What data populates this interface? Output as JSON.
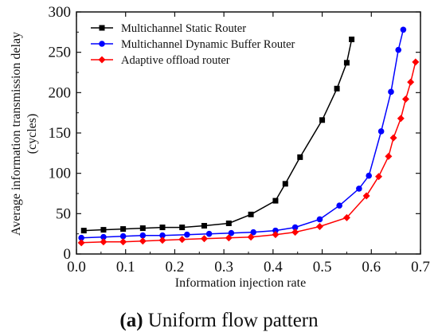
{
  "chart_data": {
    "type": "line",
    "xlabel": "Information injection rate",
    "ylabel_lines": [
      "Average information transmission delay",
      "(cycles)"
    ],
    "xlim": [
      0.0,
      0.7
    ],
    "ylim": [
      0,
      300
    ],
    "xticks": [
      "0.0",
      "0.1",
      "0.2",
      "0.3",
      "0.4",
      "0.5",
      "0.6",
      "0.7"
    ],
    "yticks": [
      "0",
      "50",
      "100",
      "150",
      "200",
      "250",
      "300"
    ],
    "grid": false,
    "legend_position": "top-left",
    "series": [
      {
        "name": "Multichannel Static Router",
        "color": "#000000",
        "marker": "square",
        "x": [
          0.015,
          0.055,
          0.095,
          0.135,
          0.175,
          0.215,
          0.26,
          0.31,
          0.355,
          0.405,
          0.425,
          0.455,
          0.5,
          0.53,
          0.55,
          0.56
        ],
        "y": [
          29,
          30,
          31,
          32,
          33,
          33,
          35,
          38,
          49,
          66,
          87,
          120,
          166,
          205,
          237,
          266
        ]
      },
      {
        "name": "Multichannel Dynamic Buffer Router",
        "color": "#0000ff",
        "marker": "circle",
        "x": [
          0.01,
          0.055,
          0.095,
          0.135,
          0.175,
          0.225,
          0.27,
          0.315,
          0.36,
          0.405,
          0.445,
          0.495,
          0.535,
          0.575,
          0.595,
          0.62,
          0.64,
          0.655,
          0.665
        ],
        "y": [
          20,
          21,
          22,
          23,
          23,
          24,
          25,
          26,
          27,
          29,
          33,
          43,
          60,
          81,
          97,
          152,
          201,
          253,
          278
        ]
      },
      {
        "name": "Adaptive offload router",
        "color": "#ff0000",
        "marker": "diamond",
        "x": [
          0.01,
          0.055,
          0.095,
          0.135,
          0.175,
          0.215,
          0.26,
          0.31,
          0.355,
          0.405,
          0.445,
          0.495,
          0.55,
          0.59,
          0.615,
          0.635,
          0.645,
          0.66,
          0.67,
          0.68,
          0.69
        ],
        "y": [
          14,
          15,
          15,
          16,
          17,
          18,
          19,
          20,
          21,
          24,
          27,
          34,
          45,
          72,
          96,
          121,
          144,
          168,
          192,
          213,
          238
        ]
      }
    ]
  },
  "caption": {
    "label": "(a)",
    "text": " Uniform flow pattern"
  }
}
